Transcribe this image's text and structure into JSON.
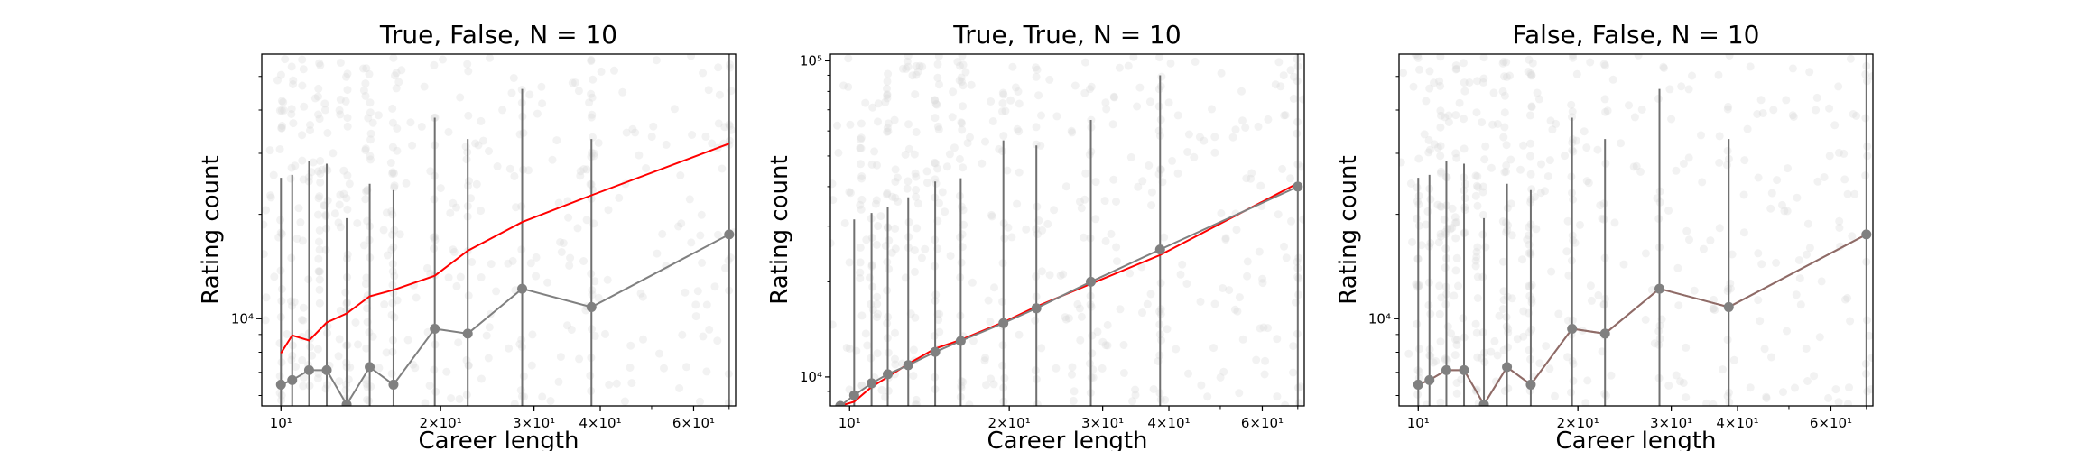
{
  "chart_data": [
    {
      "type": "scatter",
      "title": "True, False, N = 10",
      "xlabel": "Career length",
      "ylabel": "Rating count",
      "xscale": "log",
      "yscale": "log",
      "xlim": [
        9.2,
        72
      ],
      "ylim": [
        5600,
        58000
      ],
      "xticks": [
        {
          "value": 10,
          "label": "10¹"
        },
        {
          "value": 20,
          "label": "2×10¹"
        },
        {
          "value": 30,
          "label": "3×10¹"
        },
        {
          "value": 40,
          "label": "4×10¹"
        },
        {
          "value": 60,
          "label": "6×10¹"
        }
      ],
      "yticks": [
        {
          "value": 10000,
          "label": "10⁴"
        }
      ],
      "binned": {
        "x": [
          10,
          10.5,
          11.3,
          12.2,
          13.3,
          14.7,
          16.3,
          19.5,
          22.5,
          28.5,
          38.5,
          70
        ],
        "y": [
          6450,
          6650,
          7100,
          7100,
          5650,
          7250,
          6450,
          9350,
          9050,
          12200,
          10800,
          17500
        ],
        "err_high": [
          25500,
          26000,
          28500,
          28000,
          19500,
          24500,
          23500,
          38000,
          33000,
          46000,
          33000,
          58000
        ]
      },
      "reference_line": {
        "x": [
          10,
          10.5,
          11.3,
          12.2,
          13.3,
          14.7,
          16.3,
          19.5,
          22.5,
          28.5,
          38.5,
          70
        ],
        "y": [
          7950,
          8950,
          8650,
          9750,
          10350,
          11600,
          12100,
          13300,
          15700,
          19000,
          22700,
          32000
        ]
      },
      "colors": {
        "binned": "#808080",
        "reference": "#ff0000",
        "scatter": "#d9d9d9"
      }
    },
    {
      "type": "scatter",
      "title": "True, True,  N = 10",
      "xlabel": "Career length",
      "ylabel": "Rating count",
      "xscale": "log",
      "yscale": "log",
      "xlim": [
        9.2,
        72
      ],
      "ylim": [
        8100,
        105000
      ],
      "xticks": [
        {
          "value": 10,
          "label": "10¹"
        },
        {
          "value": 20,
          "label": "2×10¹"
        },
        {
          "value": 30,
          "label": "3×10¹"
        },
        {
          "value": 40,
          "label": "4×10¹"
        },
        {
          "value": 60,
          "label": "6×10¹"
        }
      ],
      "yticks": [
        {
          "value": 10000,
          "label": "10⁴"
        },
        {
          "value": 100000,
          "label": "10⁵"
        }
      ],
      "binned": {
        "x": [
          9.6,
          10.2,
          11.0,
          11.8,
          12.9,
          14.5,
          16.2,
          19.5,
          22.5,
          28.5,
          38.5,
          70
        ],
        "y": [
          8100,
          8750,
          9550,
          10200,
          10900,
          12000,
          13000,
          14800,
          16500,
          20000,
          25300,
          40000
        ],
        "err_high": [
          8100,
          31500,
          33000,
          34500,
          37000,
          41500,
          42500,
          56000,
          54000,
          65000,
          90000,
          105000
        ]
      },
      "reference_line": {
        "x": [
          9.6,
          10.2,
          11.0,
          11.8,
          12.9,
          14.5,
          16.2,
          19.5,
          22.5,
          28.5,
          38.5,
          70
        ],
        "y": [
          8100,
          8350,
          9300,
          10000,
          11000,
          12300,
          13100,
          14900,
          16700,
          19700,
          24300,
          41000
        ]
      },
      "colors": {
        "binned": "#808080",
        "reference": "#ff0000",
        "scatter": "#d9d9d9"
      }
    },
    {
      "type": "scatter",
      "title": "False, False, N = 10",
      "xlabel": "Career length",
      "ylabel": "Rating count",
      "xscale": "log",
      "yscale": "log",
      "xlim": [
        9.2,
        72
      ],
      "ylim": [
        5600,
        58000
      ],
      "xticks": [
        {
          "value": 10,
          "label": "10¹"
        },
        {
          "value": 20,
          "label": "2×10¹"
        },
        {
          "value": 30,
          "label": "3×10¹"
        },
        {
          "value": 40,
          "label": "4×10¹"
        },
        {
          "value": 60,
          "label": "6×10¹"
        }
      ],
      "yticks": [
        {
          "value": 10000,
          "label": "10⁴"
        }
      ],
      "binned": {
        "x": [
          10,
          10.5,
          11.3,
          12.2,
          13.3,
          14.7,
          16.3,
          19.5,
          22.5,
          28.5,
          38.5,
          70
        ],
        "y": [
          6450,
          6650,
          7100,
          7100,
          5650,
          7250,
          6450,
          9350,
          9050,
          12200,
          10800,
          17500
        ],
        "err_high": [
          25500,
          26000,
          28500,
          28000,
          19500,
          24500,
          23500,
          38000,
          33000,
          46000,
          33000,
          58000
        ]
      },
      "reference_line": {
        "x": [
          10,
          10.5,
          11.3,
          12.2,
          13.3,
          14.7,
          16.3,
          19.5,
          22.5,
          28.5,
          38.5,
          70
        ],
        "y": [
          6450,
          6650,
          7100,
          7100,
          5650,
          7250,
          6450,
          9350,
          9050,
          12200,
          10800,
          17500
        ]
      },
      "colors": {
        "binned": "#808080",
        "reference": "#a0524a",
        "scatter": "#d9d9d9"
      }
    }
  ]
}
